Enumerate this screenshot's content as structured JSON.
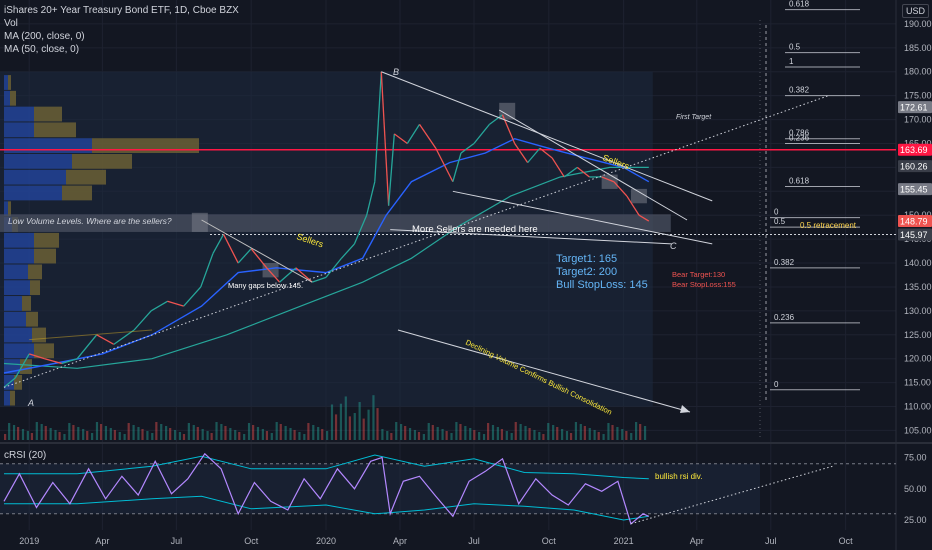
{
  "header": {
    "title": "iShares 20+ Year Treasury Bond ETF, 1D, Cboe BZX",
    "vol": "Vol",
    "ma200": "MA (200, close, 0)",
    "ma50": "MA (50, close, 0)",
    "currency": "USD"
  },
  "rsi_label": "cRSI (20)",
  "colors": {
    "background": "#131722",
    "up": "#26a69a",
    "down": "#ef5350",
    "ma50": "#2962ff",
    "ma200": "#26a69a",
    "resistance": "#ff1744",
    "volume_blue": "#2962ff",
    "volume_gold": "#c9a227",
    "rsi": "#b388ff",
    "rsi_band": "#00bcd4",
    "annotation_blue": "#64b5f6",
    "annotation_yellow": "#ffeb3b",
    "bear_red": "#ef5350"
  },
  "chart_data": {
    "type": "line",
    "title": "iShares 20+ Year Treasury Bond ETF, 1D, Cboe BZX",
    "x_axis": {
      "tick_labels": [
        "2019",
        "Apr",
        "Jul",
        "Oct",
        "2020",
        "Apr",
        "Jul",
        "Oct",
        "2021",
        "Apr",
        "Jul",
        "Oct"
      ]
    },
    "y_axis": {
      "ylim": [
        103,
        195
      ],
      "tick_values": [
        105,
        110,
        115,
        120,
        125,
        130,
        135,
        140,
        145,
        150,
        155,
        160,
        165,
        170,
        175,
        180,
        185,
        190
      ]
    },
    "price_axis_labels": [
      {
        "value": 172.61,
        "label": "172.61"
      },
      {
        "value": 163.69,
        "label": "163.69"
      },
      {
        "value": 160.26,
        "label": "160.26"
      },
      {
        "value": 155.45,
        "label": "155.45"
      },
      {
        "value": 148.79,
        "label": "148.79"
      },
      {
        "value": 145.97,
        "label": "145.97"
      }
    ],
    "price_series": {
      "name": "TLT",
      "points": [
        [
          "2018-12-01",
          114
        ],
        [
          "2018-12-15",
          116
        ],
        [
          "2019-01-01",
          121
        ],
        [
          "2019-01-20",
          120
        ],
        [
          "2019-02-10",
          119
        ],
        [
          "2019-03-01",
          120
        ],
        [
          "2019-03-25",
          125
        ],
        [
          "2019-04-15",
          123
        ],
        [
          "2019-05-10",
          126
        ],
        [
          "2019-05-31",
          130
        ],
        [
          "2019-06-20",
          132
        ],
        [
          "2019-07-10",
          131
        ],
        [
          "2019-07-31",
          135
        ],
        [
          "2019-08-15",
          142
        ],
        [
          "2019-08-28",
          146
        ],
        [
          "2019-09-15",
          140
        ],
        [
          "2019-10-01",
          143
        ],
        [
          "2019-10-20",
          139
        ],
        [
          "2019-11-05",
          136
        ],
        [
          "2019-11-25",
          139
        ],
        [
          "2019-12-15",
          136
        ],
        [
          "2020-01-01",
          137
        ],
        [
          "2020-01-20",
          141
        ],
        [
          "2020-02-05",
          144
        ],
        [
          "2020-02-20",
          150
        ],
        [
          "2020-03-01",
          157
        ],
        [
          "2020-03-09",
          180
        ],
        [
          "2020-03-18",
          152
        ],
        [
          "2020-03-25",
          167
        ],
        [
          "2020-04-10",
          165
        ],
        [
          "2020-04-25",
          169
        ],
        [
          "2020-05-15",
          164
        ],
        [
          "2020-06-05",
          157
        ],
        [
          "2020-06-15",
          163
        ],
        [
          "2020-07-01",
          165
        ],
        [
          "2020-07-20",
          169
        ],
        [
          "2020-08-05",
          171
        ],
        [
          "2020-08-20",
          165
        ],
        [
          "2020-09-05",
          161
        ],
        [
          "2020-09-20",
          164
        ],
        [
          "2020-10-05",
          162
        ],
        [
          "2020-10-20",
          158
        ],
        [
          "2020-11-05",
          160
        ],
        [
          "2020-11-20",
          158
        ],
        [
          "2020-12-05",
          158
        ],
        [
          "2020-12-20",
          157
        ],
        [
          "2021-01-05",
          154
        ],
        [
          "2021-01-20",
          150
        ],
        [
          "2021-02-01",
          148.79
        ]
      ]
    },
    "ma50_series": {
      "name": "MA (50, close, 0)",
      "points": [
        [
          "2018-12-01",
          117
        ],
        [
          "2019-02-01",
          119
        ],
        [
          "2019-04-01",
          121
        ],
        [
          "2019-06-01",
          125
        ],
        [
          "2019-08-01",
          131
        ],
        [
          "2019-09-15",
          138
        ],
        [
          "2019-11-01",
          139
        ],
        [
          "2020-01-01",
          138
        ],
        [
          "2020-02-15",
          141
        ],
        [
          "2020-03-15",
          150
        ],
        [
          "2020-04-15",
          157
        ],
        [
          "2020-06-01",
          161
        ],
        [
          "2020-07-15",
          163
        ],
        [
          "2020-08-20",
          166
        ],
        [
          "2020-10-01",
          164
        ],
        [
          "2020-11-15",
          162
        ],
        [
          "2021-01-01",
          160
        ],
        [
          "2021-02-01",
          157
        ]
      ]
    },
    "ma200_series": {
      "name": "MA (200, close, 0)",
      "points": [
        [
          "2018-12-01",
          119
        ],
        [
          "2019-03-01",
          118
        ],
        [
          "2019-06-01",
          120
        ],
        [
          "2019-09-01",
          125
        ],
        [
          "2019-12-01",
          131
        ],
        [
          "2020-02-15",
          136
        ],
        [
          "2020-04-15",
          141
        ],
        [
          "2020-06-15",
          148
        ],
        [
          "2020-08-15",
          154
        ],
        [
          "2020-10-15",
          158
        ],
        [
          "2020-12-15",
          160
        ],
        [
          "2021-02-01",
          160
        ]
      ]
    },
    "volume_profile_ranges": [
      {
        "low": 110,
        "high": 113.3,
        "blue": 6,
        "gold": 5
      },
      {
        "low": 113.3,
        "high": 116.6,
        "blue": 10,
        "gold": 8
      },
      {
        "low": 116.6,
        "high": 119.9,
        "blue": 16,
        "gold": 12
      },
      {
        "low": 119.9,
        "high": 123.2,
        "blue": 30,
        "gold": 20
      },
      {
        "low": 123.2,
        "high": 126.5,
        "blue": 28,
        "gold": 14
      },
      {
        "low": 126.5,
        "high": 129.8,
        "blue": 22,
        "gold": 12
      },
      {
        "low": 129.8,
        "high": 133.1,
        "blue": 18,
        "gold": 9
      },
      {
        "low": 133.1,
        "high": 136.4,
        "blue": 26,
        "gold": 10
      },
      {
        "low": 136.4,
        "high": 139.7,
        "blue": 24,
        "gold": 14
      },
      {
        "low": 139.7,
        "high": 143.0,
        "blue": 30,
        "gold": 22
      },
      {
        "low": 143.0,
        "high": 146.3,
        "blue": 30,
        "gold": 25
      },
      {
        "low": 146.3,
        "high": 149.6,
        "blue": 8,
        "gold": 6
      },
      {
        "low": 149.6,
        "high": 152.9,
        "blue": 4,
        "gold": 3
      },
      {
        "low": 152.9,
        "high": 156.2,
        "blue": 58,
        "gold": 30
      },
      {
        "low": 156.2,
        "high": 159.5,
        "blue": 62,
        "gold": 40
      },
      {
        "low": 159.5,
        "high": 162.8,
        "blue": 68,
        "gold": 60
      },
      {
        "low": 162.8,
        "high": 166.1,
        "blue": 88,
        "gold": 107
      },
      {
        "low": 166.1,
        "high": 169.4,
        "blue": 30,
        "gold": 42
      },
      {
        "low": 169.4,
        "high": 172.7,
        "blue": 30,
        "gold": 28
      },
      {
        "low": 172.7,
        "high": 176.0,
        "blue": 6,
        "gold": 6
      },
      {
        "low": 176.0,
        "high": 179.3,
        "blue": 4,
        "gold": 3
      }
    ],
    "horizontal_levels": [
      {
        "value": 163.69,
        "kind": "resistance"
      },
      {
        "value": 145.97,
        "kind": "dotted"
      }
    ],
    "fibonacci": [
      {
        "ratio": "0.618",
        "value": 193
      },
      {
        "ratio": "0.5",
        "value": 184
      },
      {
        "ratio": "1",
        "value": 181
      },
      {
        "ratio": "0.382",
        "value": 175
      },
      {
        "ratio": "0.786",
        "value": 166
      },
      {
        "ratio": "0.236",
        "value": 165
      },
      {
        "ratio": "0.618",
        "value": 156
      },
      {
        "ratio": "0",
        "value": 149.5
      },
      {
        "ratio": "0.5",
        "value": 147.5
      },
      {
        "ratio": "0.382",
        "value": 139
      },
      {
        "ratio": "0.236",
        "value": 127.5
      },
      {
        "ratio": "0",
        "value": 113.5
      }
    ],
    "wave_labels": [
      "A",
      "B",
      "C"
    ],
    "annotations": {
      "first_target": "First Target",
      "low_volume": "Low Volume Levels. Where are the sellers?",
      "more_sellers": "More Sellers are needed here",
      "sellers_left": "Sellers",
      "sellers_right": "Sellers",
      "gaps": "Many gaps below 145.",
      "target1": "Target1: 165",
      "target2": "Target2: 200",
      "stoploss": "Bull StopLoss: 145",
      "bear_target": "Bear Target:130",
      "bear_stoploss": "Bear StopLoss:155",
      "retracement": "0.5 retracement",
      "declining_volume": "Declining Volume Confirms Bullish Consolidation",
      "bullish_div": "bullish rsi div."
    },
    "rsi": {
      "ylim": [
        17,
        85
      ],
      "tick_values": [
        25,
        50,
        75
      ],
      "tick_labels": [
        "25.00",
        "50.00",
        "75.00"
      ],
      "points": [
        [
          "2018-12-01",
          40
        ],
        [
          "2018-12-20",
          62
        ],
        [
          "2019-01-10",
          35
        ],
        [
          "2019-01-30",
          55
        ],
        [
          "2019-02-20",
          38
        ],
        [
          "2019-03-15",
          66
        ],
        [
          "2019-04-05",
          42
        ],
        [
          "2019-04-25",
          60
        ],
        [
          "2019-05-15",
          45
        ],
        [
          "2019-06-05",
          72
        ],
        [
          "2019-06-25",
          46
        ],
        [
          "2019-07-15",
          58
        ],
        [
          "2019-08-05",
          78
        ],
        [
          "2019-08-25",
          66
        ],
        [
          "2019-09-15",
          30
        ],
        [
          "2019-10-05",
          55
        ],
        [
          "2019-10-25",
          40
        ],
        [
          "2019-11-15",
          33
        ],
        [
          "2019-12-05",
          58
        ],
        [
          "2019-12-25",
          42
        ],
        [
          "2020-01-15",
          66
        ],
        [
          "2020-02-05",
          50
        ],
        [
          "2020-02-25",
          72
        ],
        [
          "2020-03-10",
          75
        ],
        [
          "2020-03-20",
          30
        ],
        [
          "2020-04-05",
          56
        ],
        [
          "2020-04-25",
          60
        ],
        [
          "2020-05-15",
          44
        ],
        [
          "2020-06-05",
          28
        ],
        [
          "2020-06-25",
          56
        ],
        [
          "2020-07-15",
          64
        ],
        [
          "2020-08-05",
          74
        ],
        [
          "2020-08-25",
          38
        ],
        [
          "2020-09-15",
          58
        ],
        [
          "2020-10-05",
          45
        ],
        [
          "2020-10-25",
          37
        ],
        [
          "2020-11-15",
          54
        ],
        [
          "2020-12-05",
          48
        ],
        [
          "2020-12-25",
          56
        ],
        [
          "2021-01-10",
          22
        ],
        [
          "2021-01-25",
          30
        ],
        [
          "2021-02-01",
          28
        ]
      ],
      "upper_band": [
        [
          "2018-12-01",
          62
        ],
        [
          "2019-03-01",
          62
        ],
        [
          "2019-06-01",
          68
        ],
        [
          "2019-08-01",
          76
        ],
        [
          "2019-10-01",
          66
        ],
        [
          "2020-01-01",
          66
        ],
        [
          "2020-03-01",
          77
        ],
        [
          "2020-05-01",
          68
        ],
        [
          "2020-07-01",
          74
        ],
        [
          "2020-09-01",
          63
        ],
        [
          "2020-11-01",
          62
        ],
        [
          "2021-01-01",
          59
        ],
        [
          "2021-02-01",
          58
        ]
      ],
      "lower_band": [
        [
          "2018-12-01",
          38
        ],
        [
          "2019-03-01",
          38
        ],
        [
          "2019-06-01",
          42
        ],
        [
          "2019-08-01",
          44
        ],
        [
          "2019-10-01",
          34
        ],
        [
          "2020-01-01",
          37
        ],
        [
          "2020-03-01",
          30
        ],
        [
          "2020-05-01",
          33
        ],
        [
          "2020-07-01",
          38
        ],
        [
          "2020-09-01",
          36
        ],
        [
          "2020-11-01",
          33
        ],
        [
          "2021-01-01",
          25
        ],
        [
          "2021-02-01",
          28
        ]
      ],
      "horizontal_levels": [
        70,
        30
      ]
    }
  }
}
